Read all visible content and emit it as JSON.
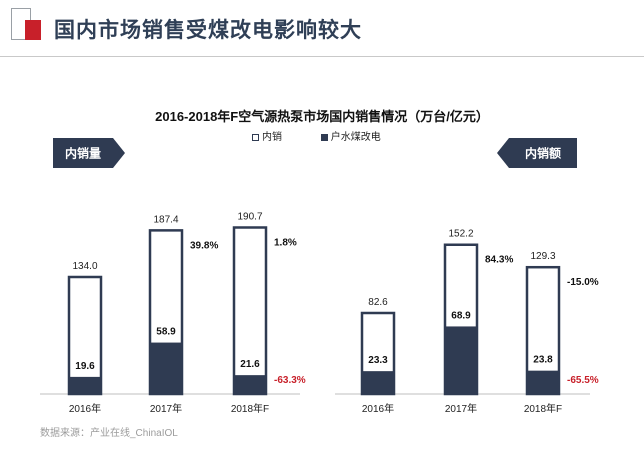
{
  "header": {
    "title": "国内市场销售受煤改电影响较大"
  },
  "colors": {
    "primary": "#2f3b52",
    "accent_red": "#c8202a",
    "negative": "#c8202a"
  },
  "chart_data": {
    "type": "bar",
    "title": "2016-2018年F空气源热泵市场国内销售情况（万台/亿元）",
    "legend": [
      "内销",
      "户水煤改电"
    ],
    "legend_placement": "top",
    "panels": [
      {
        "tag": "内销量",
        "categories": [
          "2016年",
          "2017年",
          "2018年F"
        ],
        "series": [
          {
            "name": "内销",
            "values": [
              134.0,
              187.4,
              190.7
            ],
            "labels": [
              "134.0",
              "187.4",
              "190.7"
            ]
          },
          {
            "name": "户水煤改电",
            "values": [
              19.6,
              58.9,
              21.6
            ],
            "labels": [
              "19.6",
              "58.9",
              "21.6"
            ]
          }
        ],
        "growth_total": [
          "",
          "39.8%",
          "1.8%"
        ],
        "growth_coal": [
          "",
          "",
          "-63.3%"
        ]
      },
      {
        "tag": "内销额",
        "categories": [
          "2016年",
          "2017年",
          "2018年F"
        ],
        "series": [
          {
            "name": "内销",
            "values": [
              82.6,
              152.2,
              129.3
            ],
            "labels": [
              "82.6",
              "152.2",
              "129.3"
            ]
          },
          {
            "name": "户水煤改电",
            "values": [
              23.3,
              68.9,
              23.8
            ],
            "labels": [
              "23.3",
              "68.9",
              "23.8"
            ]
          }
        ],
        "growth_total": [
          "",
          "84.3%",
          "-15.0%"
        ],
        "growth_coal": [
          "",
          "",
          "-65.5%"
        ]
      }
    ]
  },
  "footer": {
    "source": "数据来源：产业在线_ChinaIOL"
  }
}
